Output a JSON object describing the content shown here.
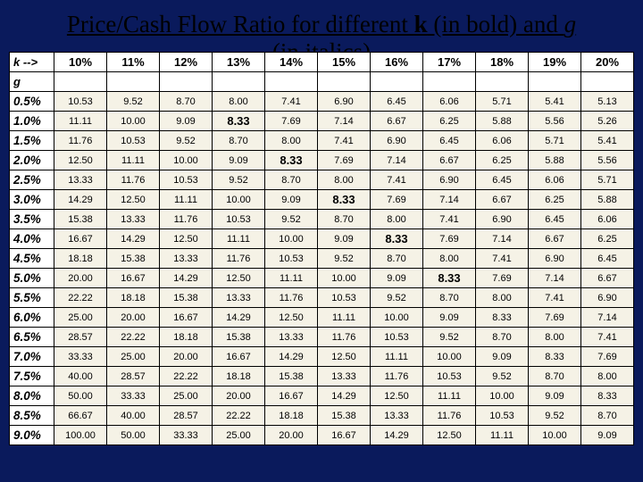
{
  "title_parts": {
    "pre": "Price/Cash Flow Ratio for different ",
    "k": "k",
    "mid": " (in bold) and ",
    "g": "g",
    "post": " (in italics)"
  },
  "corner_top": "k -->",
  "corner_bottom": "g",
  "k_headers": [
    "10%",
    "11%",
    "12%",
    "13%",
    "14%",
    "15%",
    "16%",
    "17%",
    "18%",
    "19%",
    "20%"
  ],
  "g_labels": [
    "0.5%",
    "1.0%",
    "1.5%",
    "2.0%",
    "2.5%",
    "3.0%",
    "3.5%",
    "4.0%",
    "4.5%",
    "5.0%",
    "5.5%",
    "6.0%",
    "6.5%",
    "7.0%",
    "7.5%",
    "8.0%",
    "8.5%",
    "9.0%"
  ],
  "rows": [
    [
      "10.53",
      "9.52",
      "8.70",
      "8.00",
      "7.41",
      "6.90",
      "6.45",
      "6.06",
      "5.71",
      "5.41",
      "5.13"
    ],
    [
      "11.11",
      "10.00",
      "9.09",
      "8.33",
      "7.69",
      "7.14",
      "6.67",
      "6.25",
      "5.88",
      "5.56",
      "5.26"
    ],
    [
      "11.76",
      "10.53",
      "9.52",
      "8.70",
      "8.00",
      "7.41",
      "6.90",
      "6.45",
      "6.06",
      "5.71",
      "5.41"
    ],
    [
      "12.50",
      "11.11",
      "10.00",
      "9.09",
      "8.33",
      "7.69",
      "7.14",
      "6.67",
      "6.25",
      "5.88",
      "5.56"
    ],
    [
      "13.33",
      "11.76",
      "10.53",
      "9.52",
      "8.70",
      "8.00",
      "7.41",
      "6.90",
      "6.45",
      "6.06",
      "5.71"
    ],
    [
      "14.29",
      "12.50",
      "11.11",
      "10.00",
      "9.09",
      "8.33",
      "7.69",
      "7.14",
      "6.67",
      "6.25",
      "5.88"
    ],
    [
      "15.38",
      "13.33",
      "11.76",
      "10.53",
      "9.52",
      "8.70",
      "8.00",
      "7.41",
      "6.90",
      "6.45",
      "6.06"
    ],
    [
      "16.67",
      "14.29",
      "12.50",
      "11.11",
      "10.00",
      "9.09",
      "8.33",
      "7.69",
      "7.14",
      "6.67",
      "6.25"
    ],
    [
      "18.18",
      "15.38",
      "13.33",
      "11.76",
      "10.53",
      "9.52",
      "8.70",
      "8.00",
      "7.41",
      "6.90",
      "6.45"
    ],
    [
      "20.00",
      "16.67",
      "14.29",
      "12.50",
      "11.11",
      "10.00",
      "9.09",
      "8.33",
      "7.69",
      "7.14",
      "6.67"
    ],
    [
      "22.22",
      "18.18",
      "15.38",
      "13.33",
      "11.76",
      "10.53",
      "9.52",
      "8.70",
      "8.00",
      "7.41",
      "6.90"
    ],
    [
      "25.00",
      "20.00",
      "16.67",
      "14.29",
      "12.50",
      "11.11",
      "10.00",
      "9.09",
      "8.33",
      "7.69",
      "7.14"
    ],
    [
      "28.57",
      "22.22",
      "18.18",
      "15.38",
      "13.33",
      "11.76",
      "10.53",
      "9.52",
      "8.70",
      "8.00",
      "7.41"
    ],
    [
      "33.33",
      "25.00",
      "20.00",
      "16.67",
      "14.29",
      "12.50",
      "11.11",
      "10.00",
      "9.09",
      "8.33",
      "7.69"
    ],
    [
      "40.00",
      "28.57",
      "22.22",
      "18.18",
      "15.38",
      "13.33",
      "11.76",
      "10.53",
      "9.52",
      "8.70",
      "8.00"
    ],
    [
      "50.00",
      "33.33",
      "25.00",
      "20.00",
      "16.67",
      "14.29",
      "12.50",
      "11.11",
      "10.00",
      "9.09",
      "8.33"
    ],
    [
      "66.67",
      "40.00",
      "28.57",
      "22.22",
      "18.18",
      "15.38",
      "13.33",
      "11.76",
      "10.53",
      "9.52",
      "8.70"
    ],
    [
      "100.00",
      "50.00",
      "33.33",
      "25.00",
      "20.00",
      "16.67",
      "14.29",
      "12.50",
      "11.11",
      "10.00",
      "9.09"
    ]
  ],
  "highlights": [
    [
      1,
      3
    ],
    [
      3,
      4
    ],
    [
      5,
      5
    ],
    [
      7,
      6
    ],
    [
      9,
      7
    ]
  ],
  "colors": {
    "background": "#0a1a5c",
    "header_bg": "#ffffff",
    "cell_bg": "#f5f2e6",
    "border": "#000000",
    "title_text": "#000000"
  }
}
